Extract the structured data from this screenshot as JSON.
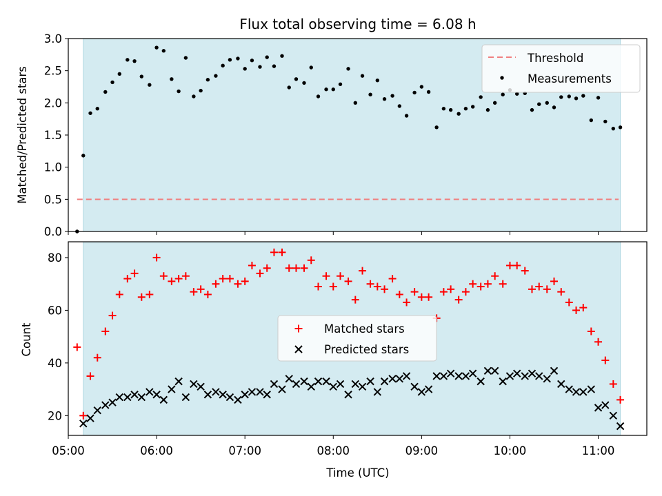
{
  "chart_data": [
    {
      "type": "scatter",
      "title": "Flux total observing time = 6.08 h",
      "xlabel": "",
      "ylabel": "Matched/Predicted stars",
      "xlim": [
        5.0,
        11.55
      ],
      "ylim": [
        0,
        3.0
      ],
      "yticks": [
        0.0,
        0.5,
        1.0,
        1.5,
        2.0,
        2.5,
        3.0
      ],
      "ytick_labels": [
        "0.0",
        "0.5",
        "1.0",
        "1.5",
        "2.0",
        "2.5",
        "3.0"
      ],
      "observing_window": [
        5.17,
        11.25
      ],
      "shade_color": "#d4ebf1",
      "legend_position": "top-right",
      "threshold": {
        "name": "Threshold",
        "y": 0.5,
        "x_range": [
          5.1,
          11.23
        ],
        "color": "#f08080",
        "style": "dashed"
      },
      "series": [
        {
          "name": "Measurements",
          "color": "#000000",
          "marker": "dot",
          "x": [
            5.1,
            5.17,
            5.25,
            5.33,
            5.42,
            5.5,
            5.58,
            5.67,
            5.75,
            5.83,
            5.92,
            6.0,
            6.08,
            6.17,
            6.25,
            6.33,
            6.42,
            6.5,
            6.58,
            6.67,
            6.75,
            6.83,
            6.92,
            7.0,
            7.08,
            7.17,
            7.25,
            7.33,
            7.42,
            7.5,
            7.58,
            7.67,
            7.75,
            7.83,
            7.92,
            8.0,
            8.08,
            8.17,
            8.25,
            8.33,
            8.42,
            8.5,
            8.58,
            8.67,
            8.75,
            8.83,
            8.92,
            9.0,
            9.08,
            9.17,
            9.25,
            9.33,
            9.42,
            9.5,
            9.58,
            9.67,
            9.75,
            9.83,
            9.92,
            10.0,
            10.08,
            10.17,
            10.25,
            10.33,
            10.42,
            10.5,
            10.58,
            10.67,
            10.75,
            10.83,
            10.92,
            11.0,
            11.08,
            11.17,
            11.25
          ],
          "y": [
            0.0,
            1.18,
            1.84,
            1.91,
            2.17,
            2.32,
            2.45,
            2.67,
            2.65,
            2.41,
            2.28,
            2.86,
            2.81,
            2.37,
            2.18,
            2.7,
            2.1,
            2.19,
            2.36,
            2.42,
            2.58,
            2.67,
            2.69,
            2.53,
            2.66,
            2.56,
            2.71,
            2.57,
            2.73,
            2.24,
            2.37,
            2.31,
            2.55,
            2.1,
            2.21,
            2.21,
            2.29,
            2.53,
            2.0,
            2.42,
            2.13,
            2.35,
            2.06,
            2.11,
            1.95,
            1.8,
            2.16,
            2.25,
            2.17,
            1.62,
            1.91,
            1.89,
            1.83,
            1.91,
            1.94,
            2.09,
            1.89,
            2.0,
            2.13,
            2.2,
            2.14,
            2.15,
            1.89,
            1.98,
            2.0,
            1.93,
            2.09,
            2.1,
            2.07,
            2.11,
            1.73,
            2.08,
            1.71,
            1.6,
            1.62
          ]
        }
      ]
    },
    {
      "type": "scatter",
      "title": "",
      "xlabel": "Time (UTC)",
      "ylabel": "Count",
      "xlim": [
        5.0,
        11.55
      ],
      "ylim": [
        12.5,
        86
      ],
      "xticks": [
        5,
        6,
        7,
        8,
        9,
        10,
        11
      ],
      "xtick_labels": [
        "05:00",
        "06:00",
        "07:00",
        "08:00",
        "09:00",
        "10:00",
        "11:00"
      ],
      "yticks": [
        20,
        40,
        60,
        80
      ],
      "ytick_labels": [
        "20",
        "40",
        "60",
        "80"
      ],
      "observing_window": [
        5.17,
        11.25
      ],
      "shade_color": "#d4ebf1",
      "legend_position": "center",
      "series": [
        {
          "name": "Matched stars",
          "color": "#ff0000",
          "marker": "plus",
          "x": [
            5.1,
            5.17,
            5.25,
            5.33,
            5.42,
            5.5,
            5.58,
            5.67,
            5.75,
            5.83,
            5.92,
            6.0,
            6.08,
            6.17,
            6.25,
            6.33,
            6.42,
            6.5,
            6.58,
            6.67,
            6.75,
            6.83,
            6.92,
            7.0,
            7.08,
            7.17,
            7.25,
            7.33,
            7.42,
            7.5,
            7.58,
            7.67,
            7.75,
            7.83,
            7.92,
            8.0,
            8.08,
            8.17,
            8.25,
            8.33,
            8.42,
            8.5,
            8.58,
            8.67,
            8.75,
            8.83,
            8.92,
            9.0,
            9.08,
            9.17,
            9.25,
            9.33,
            9.42,
            9.5,
            9.58,
            9.67,
            9.75,
            9.83,
            9.92,
            10.0,
            10.08,
            10.17,
            10.25,
            10.33,
            10.42,
            10.5,
            10.58,
            10.67,
            10.75,
            10.83,
            10.92,
            11.0,
            11.08,
            11.17,
            11.25
          ],
          "y": [
            46,
            20,
            35,
            42,
            52,
            58,
            66,
            72,
            74,
            65,
            66,
            80,
            73,
            71,
            72,
            73,
            67,
            68,
            66,
            70,
            72,
            72,
            70,
            71,
            77,
            74,
            76,
            82,
            82,
            76,
            76,
            76,
            79,
            69,
            73,
            69,
            73,
            71,
            64,
            75,
            70,
            69,
            68,
            72,
            66,
            63,
            67,
            65,
            65,
            57,
            67,
            68,
            64,
            67,
            70,
            69,
            70,
            73,
            70,
            77,
            77,
            75,
            68,
            69,
            68,
            71,
            67,
            63,
            60,
            61,
            52,
            48,
            41,
            32,
            26
          ]
        },
        {
          "name": "Predicted stars",
          "color": "#000000",
          "marker": "x",
          "x": [
            5.17,
            5.25,
            5.33,
            5.42,
            5.5,
            5.58,
            5.67,
            5.75,
            5.83,
            5.92,
            6.0,
            6.08,
            6.17,
            6.25,
            6.33,
            6.42,
            6.5,
            6.58,
            6.67,
            6.75,
            6.83,
            6.92,
            7.0,
            7.08,
            7.17,
            7.25,
            7.33,
            7.42,
            7.5,
            7.58,
            7.67,
            7.75,
            7.83,
            7.92,
            8.0,
            8.08,
            8.17,
            8.25,
            8.33,
            8.42,
            8.5,
            8.58,
            8.67,
            8.75,
            8.83,
            8.92,
            9.0,
            9.08,
            9.17,
            9.25,
            9.33,
            9.42,
            9.5,
            9.58,
            9.67,
            9.75,
            9.83,
            9.92,
            10.0,
            10.08,
            10.17,
            10.25,
            10.33,
            10.42,
            10.5,
            10.58,
            10.67,
            10.75,
            10.83,
            10.92,
            11.0,
            11.08,
            11.17,
            11.25
          ],
          "y": [
            17,
            19,
            22,
            24,
            25,
            27,
            27,
            28,
            27,
            29,
            28,
            26,
            30,
            33,
            27,
            32,
            31,
            28,
            29,
            28,
            27,
            26,
            28,
            29,
            29,
            28,
            32,
            30,
            34,
            32,
            33,
            31,
            33,
            33,
            31,
            32,
            28,
            32,
            31,
            33,
            29,
            33,
            34,
            34,
            35,
            31,
            29,
            30,
            35,
            35,
            36,
            35,
            35,
            36,
            33,
            37,
            37,
            33,
            35,
            36,
            35,
            36,
            35,
            34,
            37,
            32,
            30,
            29,
            29,
            30,
            23,
            24,
            20,
            16
          ]
        }
      ]
    }
  ]
}
